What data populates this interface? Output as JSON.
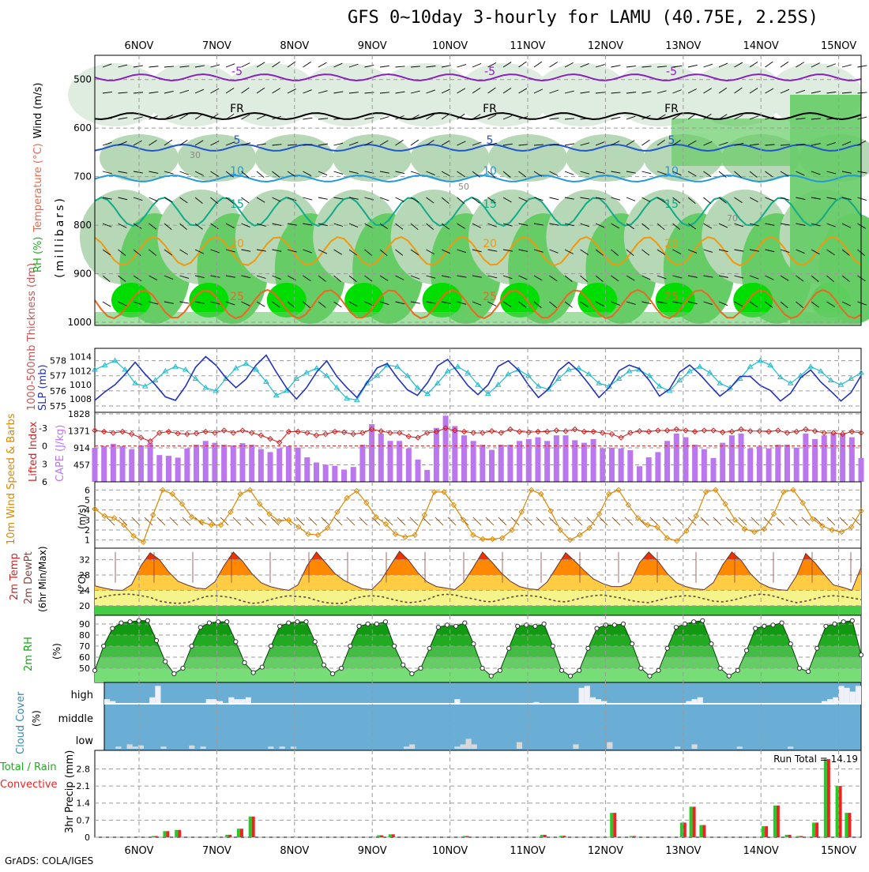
{
  "title": "GFS 0~10day 3-hourly for LAMU (40.75E, 2.25S)",
  "credit": "GrADS: COLA/IGES",
  "dates": [
    "6NOV",
    "7NOV",
    "8NOV",
    "9NOV",
    "10NOV",
    "11NOV",
    "12NOV",
    "13NOV",
    "14NOV",
    "15NOV"
  ],
  "colors": {
    "grid": "#9a9a9a",
    "rh_dark": "#00dd00",
    "rh_mid": "#66cc66",
    "rh_light": "#b7d8b7",
    "rh_pale": "#dfece0",
    "wind": "#000000",
    "slp": "#2233bb",
    "thick": "#22bbcc",
    "cape": "#bb77ee",
    "li": "#cc2222",
    "wind10": "#dd8800",
    "temp_hi": "#ee3300",
    "temp_mid": "#ff8800",
    "temp_low": "#ffcc44",
    "dew_band": "#f4f48a",
    "green_band": "#44cc44",
    "cloud_bg": "#6aaed6",
    "cloud_bar": "#f0f0f8",
    "precip_g": "#22cc22",
    "precip_r": "#ee2222"
  },
  "panels": {
    "upper": {
      "ylabel_parts": [
        "RH (%)",
        "Temperature (°C)",
        "Wind (m/s)"
      ],
      "sub": "(millibars)",
      "ticks": [
        "500",
        "600",
        "700",
        "800",
        "900",
        "1000"
      ],
      "isotherms": [
        {
          "label": "-5",
          "color": "#8822bb"
        },
        {
          "label": "FR",
          "color": "#000000"
        },
        {
          "label": "5",
          "color": "#2255cc"
        },
        {
          "label": "10",
          "color": "#2299dd"
        },
        {
          "label": "15",
          "color": "#11aa88"
        },
        {
          "label": "20",
          "color": "#ee9911"
        },
        {
          "label": "25",
          "color": "#ee6622"
        }
      ],
      "rh_labels": [
        "30",
        "50",
        "70"
      ]
    },
    "slp": {
      "ylabel_left": "1000-500mb Thickness (dm)",
      "ylabel_right": "SLP (mb)",
      "left_ticks": [
        "578",
        "577",
        "576",
        "575"
      ],
      "right_ticks": [
        "1014",
        "1012",
        "1010",
        "1008"
      ],
      "slp_values": [
        1007.8,
        1009.0,
        1010.0,
        1011.5,
        1013.2,
        1011.5,
        1010.0,
        1008.3,
        1007.8,
        1009.8,
        1012.5,
        1014.0,
        1012.8,
        1011.0,
        1009.6,
        1010.8,
        1012.8,
        1014.2,
        1011.8,
        1009.6,
        1008.0,
        1009.6,
        1011.8,
        1013.4,
        1011.2,
        1009.6,
        1008.2,
        1010.3,
        1012.4,
        1013.0,
        1011.0,
        1009.3,
        1008.5,
        1010.3,
        1012.7,
        1013.6,
        1011.8,
        1009.9,
        1008.6,
        1010.0,
        1012.6,
        1013.4,
        1012.1,
        1010.0,
        1008.2,
        1009.4,
        1012.0,
        1013.2,
        1011.9,
        1010.1,
        1008.2,
        1009.6,
        1012.0,
        1012.8,
        1012.3,
        1010.6,
        1008.4,
        1009.4,
        1011.8,
        1012.8,
        1011.5,
        1009.9,
        1008.4,
        1009.5,
        1011.2,
        1011.2,
        1009.9,
        1009.2,
        1007.7,
        1008.8,
        1011.0,
        1012.1,
        1010.4,
        1009.1,
        1007.7,
        1008.9,
        1011.3
      ],
      "thick_values": [
        577.4,
        577.7,
        578.0,
        577.4,
        576.5,
        576.3,
        576.7,
        577.3,
        577.6,
        577.4,
        576.8,
        576.2,
        576.0,
        576.8,
        577.5,
        577.8,
        577.4,
        576.6,
        575.7,
        576.0,
        576.8,
        577.2,
        577.5,
        577.0,
        576.2,
        575.5,
        575.4,
        576.5,
        577.0,
        577.7,
        577.6,
        577.0,
        576.2,
        575.8,
        576.5,
        577.3,
        577.6,
        577.2,
        576.4,
        575.8,
        576.4,
        577.1,
        577.4,
        577.0,
        576.3,
        576.1,
        576.8,
        577.4,
        577.5,
        577.1,
        576.5,
        576.3,
        576.8,
        577.3,
        577.4,
        577.0,
        576.3,
        576.0,
        576.7,
        577.3,
        577.6,
        577.2,
        576.5,
        576.2,
        576.8,
        577.6,
        578.0,
        577.7,
        576.9,
        576.5,
        577.0,
        577.6,
        577.3,
        576.7,
        576.4,
        576.8,
        577.2
      ]
    },
    "cape": {
      "ylabel_left": "Lifted Index",
      "ylabel_right": "CAPE (J/kg)",
      "left_ticks": [
        "-3",
        "0",
        "3",
        "6"
      ],
      "right_ticks": [
        "1828",
        "1371",
        "914",
        "457"
      ],
      "cape_values": [
        914,
        960,
        1020,
        960,
        880,
        980,
        1050,
        720,
        700,
        650,
        900,
        1000,
        1100,
        1050,
        1000,
        980,
        1040,
        1000,
        880,
        800,
        900,
        960,
        920,
        660,
        520,
        460,
        430,
        330,
        400,
        1000,
        1550,
        1300,
        1100,
        1100,
        900,
        600,
        320,
        1450,
        1780,
        1500,
        1250,
        1100,
        1000,
        860,
        1000,
        1000,
        1100,
        1150,
        1200,
        1100,
        1250,
        1250,
        1120,
        1050,
        1150,
        900,
        920,
        900,
        850,
        420,
        660,
        800,
        1100,
        1300,
        1200,
        1000,
        880,
        640,
        1050,
        1250,
        1300,
        900,
        950,
        900,
        1000,
        1000,
        920,
        1300,
        1150,
        1250,
        1300,
        1300,
        1200,
        640
      ],
      "li_values": [
        -2.6,
        -2.4,
        -2.2,
        -2.4,
        -2.0,
        -1.4,
        -0.8,
        -2.2,
        -2.4,
        -2.1,
        -2.0,
        -2.1,
        -2.4,
        -2.2,
        -2.6,
        -2.2,
        -2.6,
        -2.2,
        -1.8,
        -1.2,
        -0.6,
        -2.4,
        -2.4,
        -2.2,
        -1.8,
        -2.0,
        -2.4,
        -2.3,
        -2.0,
        -2.2,
        -2.8,
        -2.5,
        -2.2,
        -2.2,
        -1.6,
        -1.4,
        -2.2,
        -2.4,
        -3.0,
        -2.6,
        -2.4,
        -2.2,
        -2.2,
        -2.5,
        -2.2,
        -2.8,
        -2.4,
        -2.3,
        -2.4,
        -2.4,
        -2.6,
        -2.5,
        -2.8,
        -2.4,
        -2.4,
        -2.2,
        -2.0,
        -1.4,
        -2.2,
        -2.5,
        -2.4,
        -2.6,
        -2.6,
        -2.8,
        -2.6,
        -2.4,
        -2.6,
        -2.6,
        -2.3,
        -2.4,
        -2.8,
        -2.5,
        -2.5,
        -2.4,
        -2.6,
        -2.2,
        -2.4,
        -2.8,
        -2.5,
        -2.2,
        -2.2,
        -2.0,
        -2.4,
        -2.2
      ]
    },
    "wind10": {
      "ylabel": "10m Wind Speed & Barbs",
      "unit": "(m/s)",
      "ticks": [
        "6",
        "5",
        "4",
        "3",
        "2",
        "1"
      ],
      "values": [
        4.1,
        3.4,
        3.2,
        2.5,
        1.4,
        0.8,
        3.5,
        6.0,
        5.6,
        4.6,
        3.3,
        2.8,
        2.5,
        2.5,
        3.8,
        5.6,
        6.0,
        4.6,
        3.6,
        2.9,
        3.0,
        2.3,
        1.6,
        1.5,
        2.2,
        3.8,
        5.2,
        5.9,
        4.7,
        3.3,
        2.6,
        1.6,
        1.3,
        1.5,
        3.5,
        5.8,
        5.8,
        4.5,
        3.0,
        1.5,
        1.1,
        1.1,
        1.2,
        2.0,
        3.8,
        6.0,
        5.6,
        3.9,
        2.0,
        1.0,
        1.5,
        2.2,
        3.6,
        5.6,
        6.0,
        4.5,
        3.2,
        2.5,
        2.3,
        1.2,
        0.9,
        1.9,
        3.4,
        5.8,
        6.0,
        4.6,
        3.0,
        2.1,
        1.8,
        2.1,
        3.6,
        5.8,
        6.0,
        4.7,
        3.1,
        2.4,
        2.0,
        1.8,
        2.3,
        3.9
      ]
    },
    "temp": {
      "ylabel": "2m Temp 2m DewPt (6hr Min/Max)",
      "unit": "(°C)",
      "ticks": [
        "32",
        "28",
        "24",
        "20"
      ],
      "temp_values": [
        25.2,
        24.6,
        24.1,
        24.0,
        25.5,
        30.4,
        33.8,
        32.0,
        28.8,
        26.4,
        25.4,
        24.6,
        24.4,
        26.2,
        30.4,
        34.0,
        31.6,
        28.4,
        26.0,
        25.0,
        24.4,
        24.0,
        25.4,
        30.4,
        34.0,
        31.2,
        28.4,
        26.6,
        25.4,
        24.4,
        24.2,
        26.6,
        30.4,
        34.2,
        31.8,
        28.6,
        26.2,
        25.0,
        24.6,
        24.2,
        26.2,
        30.0,
        34.0,
        31.4,
        28.6,
        26.4,
        25.0,
        24.4,
        24.2,
        26.2,
        30.0,
        33.8,
        31.6,
        29.2,
        27.0,
        25.8,
        25.0,
        25.0,
        26.0,
        31.2,
        34.0,
        31.6,
        28.4,
        26.0,
        25.0,
        24.4,
        24.2,
        26.0,
        30.6,
        34.0,
        31.8,
        28.4,
        26.0,
        24.8,
        24.2,
        24.0,
        27.8,
        33.6,
        31.2,
        28.2,
        25.4,
        24.8,
        24.0,
        30.0
      ],
      "dew_values": [
        21.8,
        22.4,
        22.8,
        23.0,
        23.0,
        22.6,
        22.2,
        21.2,
        20.8,
        20.6,
        20.8,
        21.6,
        22.4,
        22.6,
        22.4,
        22.0,
        21.2,
        20.6,
        20.8,
        21.6,
        22.2,
        22.6,
        22.4,
        22.2,
        21.4,
        20.8,
        20.6,
        20.6,
        21.8,
        22.4,
        22.6,
        22.4,
        21.8,
        21.2,
        20.8,
        21.0,
        21.6,
        22.6,
        23.0,
        22.8,
        22.2,
        21.8,
        21.2,
        21.0,
        21.6,
        22.2,
        22.6,
        22.6,
        22.4,
        21.8,
        21.2,
        21.0,
        21.6,
        22.2,
        22.6,
        22.8,
        22.4,
        22.0,
        21.4,
        21.0,
        20.8,
        21.4,
        22.0,
        22.4,
        22.6,
        22.4,
        21.8,
        21.2,
        21.0,
        21.4,
        22.0,
        22.6,
        23.0,
        22.8,
        22.2,
        21.4,
        20.8,
        21.2,
        21.8,
        22.4,
        22.6,
        22.4,
        22.0,
        21.6
      ]
    },
    "rh2m": {
      "ylabel": "2m RH",
      "unit": "(%)",
      "ticks": [
        "90",
        "80",
        "70",
        "60",
        "50"
      ],
      "values": [
        48,
        70,
        86,
        91,
        92,
        93,
        93,
        75,
        56,
        45,
        50,
        70,
        87,
        91,
        92,
        92,
        74,
        55,
        46,
        51,
        70,
        88,
        91,
        92,
        92,
        74,
        53,
        45,
        50,
        70,
        88,
        90,
        90,
        92,
        70,
        53,
        45,
        50,
        68,
        87,
        89,
        88,
        91,
        72,
        50,
        43,
        48,
        68,
        88,
        89,
        88,
        90,
        70,
        48,
        43,
        48,
        68,
        86,
        89,
        89,
        90,
        72,
        50,
        43,
        48,
        68,
        87,
        90,
        92,
        93,
        72,
        50,
        43,
        48,
        66,
        86,
        88,
        89,
        91,
        72,
        50,
        47,
        68,
        88,
        90,
        92,
        93,
        62
      ]
    },
    "cloud": {
      "ylabel": "Cloud Cover",
      "unit": "(%)",
      "levels": [
        "high",
        "middle",
        "low"
      ]
    },
    "precip": {
      "ylabel_left": "Total / Rain",
      "ylabel_left2": "Convective",
      "ylabel_right": "3hr Precip (mm)",
      "ticks": [
        "2.8",
        "2.1",
        "1.4",
        "0.7",
        "0"
      ],
      "run_total": "Run Total = 14.19"
    }
  },
  "chart_data": {
    "type": "line",
    "title": "GFS 0~10day 3-hourly for LAMU (40.75E, 2.25S)",
    "x_categories": [
      "6NOV",
      "7NOV",
      "8NOV",
      "9NOV",
      "10NOV",
      "11NOV",
      "12NOV",
      "13NOV",
      "14NOV",
      "15NOV"
    ],
    "precip_bars": [
      {
        "day": "6NOV",
        "offset": 0.2,
        "value": 0.05
      },
      {
        "day": "6NOV",
        "offset": 0.35,
        "value": 0.25
      },
      {
        "day": "6NOV",
        "offset": 0.5,
        "value": 0.3
      },
      {
        "day": "7NOV",
        "offset": 0.15,
        "value": 0.1
      },
      {
        "day": "7NOV",
        "offset": 0.3,
        "value": 0.35
      },
      {
        "day": "7NOV",
        "offset": 0.45,
        "value": 0.85
      },
      {
        "day": "9NOV",
        "offset": 0.1,
        "value": 0.08
      },
      {
        "day": "9NOV",
        "offset": 0.25,
        "value": 0.12
      },
      {
        "day": "10NOV",
        "offset": 0.2,
        "value": 0.05
      },
      {
        "day": "11NOV",
        "offset": 0.2,
        "value": 0.1
      },
      {
        "day": "11NOV",
        "offset": 0.45,
        "value": 0.06
      },
      {
        "day": "12NOV",
        "offset": 0.1,
        "value": 1.0
      },
      {
        "day": "12NOV",
        "offset": 0.35,
        "value": 0.05
      },
      {
        "day": "13NOV",
        "offset": 0.0,
        "value": 0.6
      },
      {
        "day": "13NOV",
        "offset": 0.12,
        "value": 1.25
      },
      {
        "day": "13NOV",
        "offset": 0.25,
        "value": 0.5
      },
      {
        "day": "14NOV",
        "offset": 0.05,
        "value": 0.45
      },
      {
        "day": "14NOV",
        "offset": 0.2,
        "value": 1.3
      },
      {
        "day": "14NOV",
        "offset": 0.35,
        "value": 0.1
      },
      {
        "day": "15NOV",
        "offset": -0.5,
        "value": 0.05
      },
      {
        "day": "15NOV",
        "offset": -0.3,
        "value": 0.6
      },
      {
        "day": "15NOV",
        "offset": -0.15,
        "value": 3.2
      },
      {
        "day": "15NOV",
        "offset": 0.0,
        "value": 2.1
      },
      {
        "day": "15NOV",
        "offset": 0.12,
        "value": 1.0
      }
    ],
    "cloud_high": [
      20,
      10,
      0,
      0,
      0,
      0,
      0,
      0,
      30,
      90,
      0,
      0,
      0,
      0,
      0,
      0,
      0,
      0,
      20,
      20,
      10,
      0,
      30,
      20,
      20,
      30,
      0,
      0,
      0,
      0,
      0,
      0,
      0,
      0,
      0,
      0,
      0,
      0,
      0,
      0,
      0,
      0,
      0,
      0,
      0,
      0,
      0,
      0,
      0,
      0,
      0,
      0,
      0,
      0,
      0,
      0,
      0,
      0,
      0,
      0,
      0,
      0,
      20,
      0,
      0,
      0,
      0,
      0,
      0,
      0,
      0,
      0,
      0,
      0,
      0,
      0,
      5,
      0,
      0,
      0,
      0,
      0,
      0,
      0,
      80,
      90,
      30,
      20,
      10,
      0,
      0,
      0,
      0,
      0,
      0,
      0,
      0,
      0,
      0,
      0,
      0,
      0,
      0,
      10,
      20,
      30,
      0,
      0,
      0,
      0,
      0,
      0,
      0,
      0,
      0,
      0,
      0,
      0,
      0,
      0,
      0,
      0,
      0,
      0,
      0,
      0,
      0,
      10,
      20,
      30,
      90,
      80,
      60,
      90
    ],
    "cloud_low": [
      0,
      0,
      10,
      0,
      20,
      10,
      15,
      0,
      0,
      0,
      10,
      0,
      0,
      0,
      0,
      15,
      0,
      10,
      0,
      0,
      0,
      0,
      0,
      0,
      0,
      0,
      0,
      0,
      0,
      10,
      0,
      10,
      0,
      10,
      0,
      0,
      0,
      0,
      0,
      0,
      0,
      0,
      0,
      0,
      0,
      0,
      0,
      0,
      0,
      0,
      0,
      0,
      0,
      10,
      20,
      0,
      0,
      0,
      0,
      0,
      0,
      0,
      10,
      20,
      45,
      20,
      0,
      0,
      0,
      0,
      0,
      0,
      0,
      30,
      0,
      0,
      0,
      0,
      0,
      0,
      0,
      0,
      0,
      20,
      0,
      0,
      0,
      0,
      0,
      30,
      0,
      0,
      0,
      0,
      0,
      0,
      0,
      0,
      0,
      0,
      0,
      10,
      0,
      0,
      20,
      0,
      0,
      0,
      0,
      0,
      0,
      0,
      10,
      0,
      0,
      0,
      0,
      0,
      0,
      0,
      0,
      10,
      0,
      0,
      0,
      0,
      0,
      0,
      0,
      0,
      0,
      0,
      0,
      0,
      0
    ]
  }
}
